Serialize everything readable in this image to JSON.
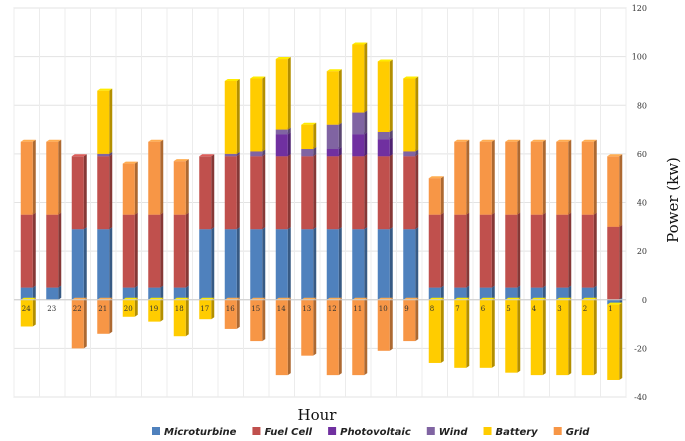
{
  "chart_data": {
    "type": "bar",
    "stacked": true,
    "title": "",
    "xlabel": "Hour",
    "ylabel": "Power (kw)",
    "ylim": [
      -40,
      120
    ],
    "yticks": [
      -40,
      -20,
      0,
      20,
      40,
      60,
      80,
      100,
      120
    ],
    "grid": true,
    "legend_position": "bottom",
    "categories": [
      "24",
      "23",
      "22",
      "21",
      "20",
      "19",
      "18",
      "17",
      "16",
      "15",
      "14",
      "13",
      "12",
      "11",
      "10",
      "9",
      "8",
      "7",
      "6",
      "5",
      "4",
      "3",
      "2",
      "1"
    ],
    "series": [
      {
        "name": "Microturbine",
        "color": "#4f81bd",
        "values": [
          5,
          5,
          29,
          29,
          5,
          5,
          5,
          29,
          29,
          29,
          29,
          29,
          29,
          29,
          29,
          29,
          5,
          5,
          5,
          5,
          5,
          5,
          5,
          -2
        ]
      },
      {
        "name": "Fuel Cell",
        "color": "#c0504d",
        "values": [
          30,
          30,
          30,
          30,
          30,
          30,
          30,
          30,
          30,
          30,
          30,
          30,
          30,
          30,
          30,
          30,
          30,
          30,
          30,
          30,
          30,
          30,
          30,
          30
        ]
      },
      {
        "name": "Photovoltaic",
        "color": "#7030a0",
        "values": [
          0,
          0,
          0,
          0,
          0,
          0,
          0,
          0,
          0,
          0,
          9,
          0,
          3,
          9,
          7,
          0,
          0,
          0,
          0,
          0,
          0,
          0,
          0,
          0
        ]
      },
      {
        "name": "Wind",
        "color": "#8064a2",
        "values": [
          0,
          0,
          0,
          1,
          0,
          0,
          0,
          0,
          1,
          2,
          2,
          3,
          10,
          9,
          3,
          2,
          0,
          0,
          0,
          0,
          0,
          0,
          0,
          0
        ]
      },
      {
        "name": "Battery",
        "color": "#ffcc00",
        "values": [
          -11,
          0,
          0,
          26,
          -7,
          -9,
          -15,
          -8,
          30,
          30,
          29,
          10,
          22,
          28,
          29,
          30,
          -26,
          -28,
          -28,
          -30,
          -31,
          -31,
          -31,
          -31
        ]
      },
      {
        "name": "Grid",
        "color": "#f79646",
        "values": [
          30,
          30,
          -20,
          -14,
          21,
          30,
          22,
          0,
          -12,
          -17,
          -31,
          -23,
          -31,
          -31,
          -21,
          -17,
          15,
          30,
          30,
          30,
          30,
          30,
          30,
          29
        ]
      }
    ]
  }
}
